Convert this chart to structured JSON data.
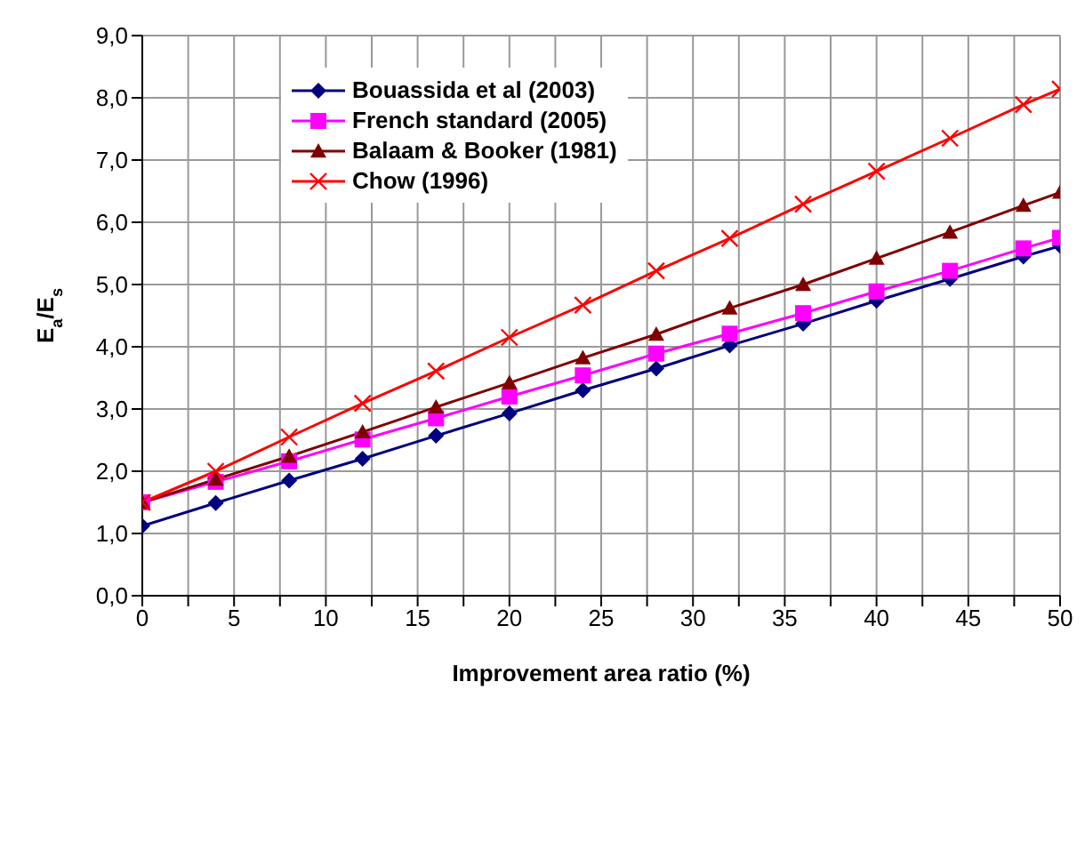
{
  "chart_data": {
    "type": "line",
    "xlabel": "Improvement area ratio (%)",
    "ylabel": "E$_{a}$/E$_{s}$",
    "x": [
      0,
      4,
      8,
      12,
      16,
      20,
      24,
      28,
      32,
      36,
      40,
      44,
      48,
      50
    ],
    "xlim": [
      0,
      50
    ],
    "xticks": [
      0,
      {
        "value": 2.5,
        "label": null
      },
      5,
      {
        "value": 7.5,
        "label": null
      },
      10,
      {
        "value": 12.5,
        "label": null
      },
      15,
      {
        "value": 17.5,
        "label": null
      },
      20,
      {
        "value": 22.5,
        "label": null
      },
      25,
      {
        "value": 27.5,
        "label": null
      },
      30,
      {
        "value": 32.5,
        "label": null
      },
      35,
      {
        "value": 37.5,
        "label": null
      },
      40,
      {
        "value": 42.5,
        "label": null
      },
      45,
      {
        "value": 47.5,
        "label": null
      },
      50
    ],
    "ylim": [
      0,
      9
    ],
    "yticks": [
      {
        "value": 0,
        "label": "0,0"
      },
      {
        "value": 1,
        "label": "1,0"
      },
      {
        "value": 2,
        "label": "2,0"
      },
      {
        "value": 3,
        "label": "3,0"
      },
      {
        "value": 4,
        "label": "4,0"
      },
      {
        "value": 5,
        "label": "5,0"
      },
      {
        "value": 6,
        "label": "6,0"
      },
      {
        "value": 7,
        "label": "7,0"
      },
      {
        "value": 8,
        "label": "8,0"
      },
      {
        "value": 9,
        "label": "9,0"
      }
    ],
    "grid": true,
    "legend": "top left",
    "line_style": "solid",
    "series": [
      {
        "name": "Bouassida et al (2003)",
        "color": "#000080",
        "marker": "diamond",
        "values": [
          1.12,
          1.49,
          1.85,
          2.2,
          2.57,
          2.93,
          3.3,
          3.65,
          4.02,
          4.37,
          4.74,
          5.09,
          5.45,
          5.62
        ]
      },
      {
        "name": "French standard (2005)",
        "color": "#ff00ff",
        "marker": "square",
        "values": [
          1.5,
          1.83,
          2.16,
          2.51,
          2.85,
          3.2,
          3.54,
          3.89,
          4.21,
          4.54,
          4.89,
          5.22,
          5.58,
          5.75
        ]
      },
      {
        "name": "Balaam & Booker (1981)",
        "color": "#800000",
        "marker": "triangle",
        "values": [
          1.5,
          1.87,
          2.24,
          2.63,
          3.03,
          3.42,
          3.82,
          4.2,
          4.62,
          5.0,
          5.42,
          5.84,
          6.27,
          6.48
        ]
      },
      {
        "name": "Chow (1996)",
        "color": "#ff0000",
        "marker": "cross",
        "values": [
          1.5,
          2.0,
          2.55,
          3.09,
          3.61,
          4.15,
          4.67,
          5.22,
          5.74,
          6.29,
          6.82,
          7.35,
          7.89,
          8.14
        ]
      }
    ]
  }
}
